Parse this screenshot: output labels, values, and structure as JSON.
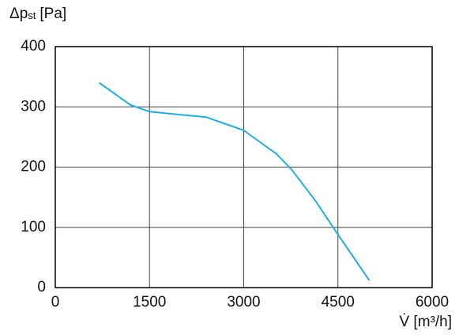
{
  "chart_data": {
    "type": "line",
    "y_label": {
      "symbol": "Δp",
      "subscript": "st",
      "unit": "[Pa]"
    },
    "x_label": "V̇ [m³/h]",
    "x": [
      700,
      1200,
      1500,
      2000,
      2400,
      3000,
      3520,
      3770,
      4150,
      4500,
      5000
    ],
    "values": [
      340,
      303,
      292,
      287,
      283,
      261,
      222,
      195,
      143,
      88,
      12
    ],
    "color": "#1eaee6",
    "xlim": [
      0,
      6000
    ],
    "xticks": [
      0,
      1500,
      3000,
      4500,
      6000
    ],
    "ylim": [
      0,
      400
    ],
    "yticks": [
      0,
      100,
      200,
      300,
      400
    ],
    "grid": true
  }
}
